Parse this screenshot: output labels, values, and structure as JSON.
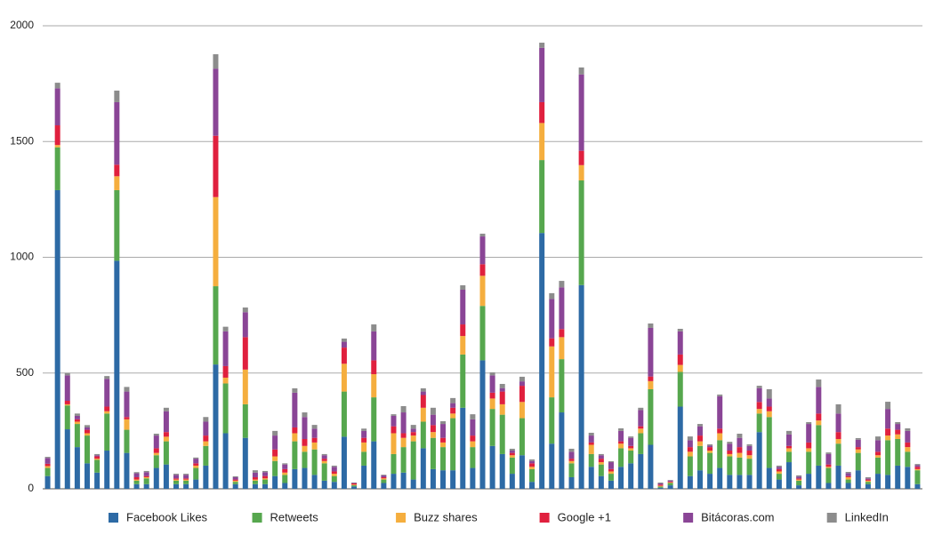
{
  "chart_data": {
    "type": "stacked-bar",
    "ylim": [
      0,
      2000
    ],
    "yticks": [
      0,
      500,
      1000,
      1500,
      2000
    ],
    "grid": true,
    "series": [
      {
        "name": "Facebook Likes",
        "color": "#2d6aa5",
        "values": [
          55,
          1290,
          257,
          180,
          110,
          70,
          165,
          985,
          155,
          20,
          20,
          90,
          105,
          20,
          20,
          40,
          100,
          537,
          240,
          20,
          220,
          20,
          20,
          55,
          25,
          85,
          90,
          60,
          35,
          30,
          225,
          10,
          100,
          205,
          25,
          65,
          70,
          40,
          175,
          85,
          80,
          80,
          350,
          90,
          555,
          185,
          150,
          65,
          145,
          30,
          1105,
          195,
          330,
          50,
          880,
          95,
          55,
          35,
          95,
          110,
          150,
          190,
          5,
          15,
          355,
          55,
          80,
          65,
          90,
          60,
          60,
          60,
          245,
          90,
          40,
          115,
          15,
          65,
          100,
          25,
          100,
          25,
          80,
          20,
          65,
          60,
          100,
          95,
          20
        ]
      },
      {
        "name": "Retweets",
        "color": "#56a74e",
        "values": [
          35,
          185,
          103,
          100,
          120,
          55,
          160,
          305,
          100,
          15,
          25,
          55,
          100,
          15,
          15,
          50,
          85,
          338,
          215,
          10,
          145,
          15,
          20,
          65,
          35,
          120,
          70,
          110,
          75,
          25,
          195,
          5,
          60,
          190,
          15,
          85,
          110,
          165,
          115,
          135,
          100,
          225,
          230,
          90,
          235,
          160,
          170,
          70,
          160,
          55,
          315,
          200,
          230,
          60,
          452,
          55,
          50,
          30,
          80,
          55,
          90,
          240,
          5,
          10,
          150,
          85,
          105,
          90,
          120,
          80,
          75,
          70,
          80,
          220,
          25,
          45,
          20,
          95,
          175,
          65,
          95,
          15,
          75,
          10,
          70,
          150,
          115,
          65,
          60
        ]
      },
      {
        "name": "Buzz shares",
        "color": "#f5ae3e",
        "values": [
          8,
          10,
          5,
          10,
          10,
          5,
          10,
          60,
          45,
          5,
          5,
          10,
          20,
          5,
          5,
          10,
          20,
          385,
          25,
          5,
          150,
          5,
          5,
          20,
          10,
          35,
          25,
          30,
          10,
          10,
          120,
          3,
          40,
          100,
          5,
          90,
          40,
          25,
          60,
          25,
          20,
          20,
          80,
          25,
          130,
          45,
          45,
          10,
          70,
          10,
          160,
          220,
          95,
          10,
          66,
          40,
          10,
          10,
          20,
          10,
          20,
          35,
          3,
          3,
          30,
          20,
          20,
          10,
          30,
          10,
          20,
          15,
          20,
          25,
          10,
          15,
          5,
          15,
          20,
          5,
          20,
          10,
          15,
          5,
          10,
          20,
          20,
          20,
          5
        ]
      },
      {
        "name": "Google +1",
        "color": "#e0203e",
        "values": [
          10,
          85,
          15,
          10,
          15,
          10,
          20,
          50,
          10,
          10,
          5,
          20,
          20,
          5,
          5,
          10,
          25,
          265,
          50,
          5,
          140,
          10,
          10,
          30,
          15,
          25,
          30,
          20,
          10,
          10,
          70,
          5,
          20,
          60,
          5,
          30,
          20,
          15,
          55,
          30,
          20,
          25,
          50,
          25,
          50,
          25,
          55,
          10,
          70,
          15,
          90,
          35,
          35,
          10,
          62,
          10,
          15,
          10,
          10,
          10,
          10,
          20,
          5,
          3,
          45,
          20,
          25,
          15,
          20,
          15,
          25,
          20,
          30,
          20,
          10,
          10,
          5,
          25,
          30,
          10,
          30,
          5,
          10,
          5,
          15,
          30,
          20,
          20,
          10
        ]
      },
      {
        "name": "Bitácoras.com",
        "color": "#8a4596",
        "values": [
          25,
          160,
          110,
          15,
          10,
          5,
          120,
          270,
          110,
          17,
          17,
          55,
          90,
          15,
          15,
          20,
          60,
          290,
          150,
          10,
          108,
          20,
          17,
          60,
          20,
          150,
          95,
          40,
          15,
          20,
          25,
          2,
          30,
          125,
          8,
          45,
          90,
          15,
          15,
          45,
          60,
          20,
          150,
          70,
          120,
          75,
          15,
          10,
          19,
          10,
          235,
          170,
          180,
          30,
          330,
          30,
          15,
          30,
          45,
          35,
          70,
          210,
          5,
          5,
          100,
          30,
          40,
          7,
          140,
          30,
          40,
          20,
          60,
          35,
          10,
          50,
          8,
          80,
          115,
          45,
          80,
          13,
          32,
          5,
          50,
          85,
          25,
          50,
          7
        ]
      },
      {
        "name": "LinkedIn",
        "color": "#8c8c8c",
        "values": [
          5,
          24,
          10,
          10,
          10,
          5,
          12,
          50,
          20,
          5,
          5,
          8,
          15,
          5,
          5,
          5,
          20,
          62,
          20,
          4,
          20,
          10,
          5,
          20,
          5,
          19,
          20,
          16,
          5,
          5,
          14,
          2,
          10,
          30,
          3,
          7,
          27,
          16,
          14,
          30,
          12,
          22,
          19,
          22,
          12,
          13,
          18,
          8,
          20,
          7,
          22,
          25,
          28,
          13,
          30,
          12,
          5,
          4,
          11,
          6,
          10,
          19,
          4,
          2,
          11,
          16,
          10,
          5,
          7,
          8,
          18,
          7,
          10,
          40,
          5,
          15,
          5,
          8,
          32,
          7,
          40,
          5,
          7,
          5,
          16,
          31,
          8,
          11,
          5
        ]
      }
    ],
    "legend": "bottom"
  }
}
